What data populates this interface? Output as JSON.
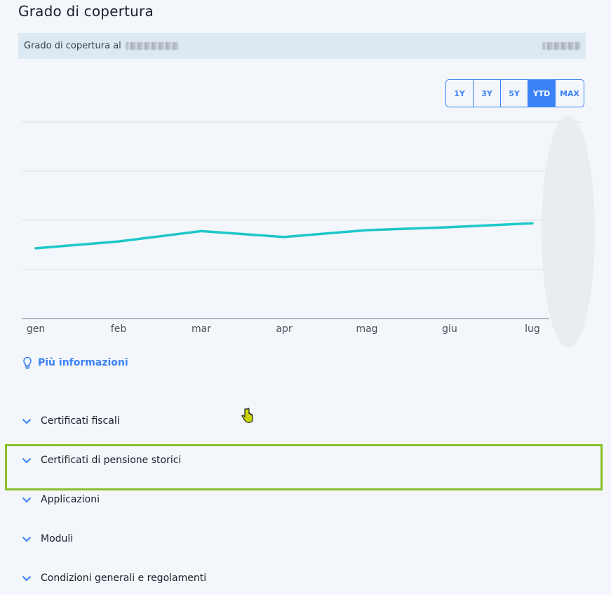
{
  "header": {
    "title": "Grado di copertura"
  },
  "info_bar": {
    "label": "Grado di copertura al"
  },
  "ranges": [
    {
      "label": "1Y",
      "active": false
    },
    {
      "label": "3Y",
      "active": false
    },
    {
      "label": "5Y",
      "active": false
    },
    {
      "label": "YTD",
      "active": true
    },
    {
      "label": "MAX",
      "active": false
    }
  ],
  "chart_data": {
    "type": "line",
    "categories": [
      "gen",
      "feb",
      "mar",
      "apr",
      "mag",
      "giu",
      "lug"
    ],
    "series": [
      {
        "values": [
          -0.57,
          -0.43,
          -0.22,
          -0.34,
          -0.2,
          -0.14,
          -0.06
        ],
        "color": "#1ec8c8"
      }
    ],
    "ylim": [
      -2,
      2
    ],
    "grid": true,
    "title": "",
    "xlabel": "",
    "ylabel": ""
  },
  "more_info": {
    "label": "Più informazioni"
  },
  "accordion": {
    "items": [
      {
        "label": "Certificati fiscali"
      },
      {
        "label": "Certificati di pensione storici"
      },
      {
        "label": "Applicazioni"
      },
      {
        "label": "Moduli"
      },
      {
        "label": "Condizioni generali e regolamenti"
      }
    ]
  },
  "colors": {
    "accent": "#3b82f6",
    "line": "#1ec8c8",
    "highlight": "#8bbf2a"
  }
}
